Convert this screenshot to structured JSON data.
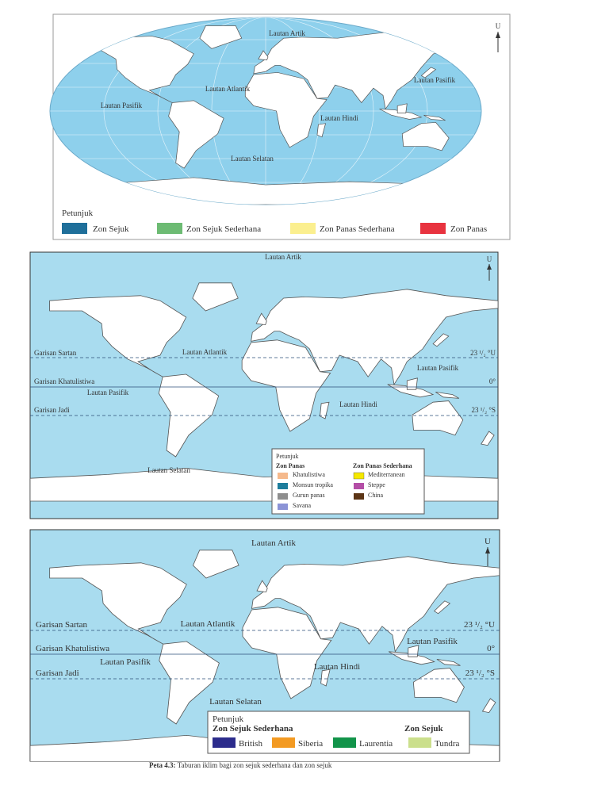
{
  "maps": [
    {
      "north": "U",
      "labels": [
        "Lautan Artik",
        "Lautan Pasifik",
        "Lautan Atlantik",
        "Lautan Hindi",
        "Lautan Pasifik",
        "Lautan Selatan"
      ],
      "legend": {
        "title": "Petunjuk",
        "items": [
          "Zon Sejuk",
          "Zon Sejuk Sederhana",
          "Zon Panas Sederhana",
          "Zon Panas"
        ]
      }
    },
    {
      "north": "U",
      "lines": [
        {
          "name": "Garisan Sartan",
          "latitude": "23 ¹/₂ °U"
        },
        {
          "name": "Garisan Khatulistiwa",
          "latitude": "0°"
        },
        {
          "name": "Garisan Jadi",
          "latitude": "23 ¹/₂ °S"
        }
      ],
      "labels": [
        "Lautan Artik",
        "Lautan Atlantik",
        "Lautan Pasifik",
        "Lautan Pasifik",
        "Lautan Hindi",
        "Lautan Selatan"
      ],
      "legend": {
        "title": "Petunjuk",
        "groups": [
          {
            "title": "Zon Panas",
            "items": [
              "Khatulistiwa",
              "Monsun tropika",
              "Gurun panas",
              "Savana"
            ]
          },
          {
            "title": "Zon Panas Sederhana",
            "items": [
              "Mediterranean",
              "Steppe",
              "China"
            ]
          }
        ]
      }
    },
    {
      "north": "U",
      "lines": [
        {
          "name": "Garisan Sartan",
          "latitude": "23 ¹/₂ °U"
        },
        {
          "name": "Garisan Khatulistiwa",
          "latitude": "0°"
        },
        {
          "name": "Garisan Jadi",
          "latitude": "23 ¹/₂ °S"
        }
      ],
      "labels": [
        "Lautan Artik",
        "Lautan Atlantik",
        "Lautan Pasifik",
        "Lautan Pasifik",
        "Lautan Hindi",
        "Lautan Selatan"
      ],
      "legend": {
        "title": "Petunjuk",
        "groups": [
          {
            "title": "Zon Sejuk Sederhana",
            "items": [
              "British",
              "Siberia",
              "Laurentia"
            ]
          },
          {
            "title": "Zon Sejuk",
            "items": [
              "Tundra"
            ]
          }
        ]
      }
    }
  ],
  "caption": {
    "label": "Peta 4.3:",
    "text": "Taburan iklim bagi zon sejuk sederhana dan zon sejuk"
  }
}
